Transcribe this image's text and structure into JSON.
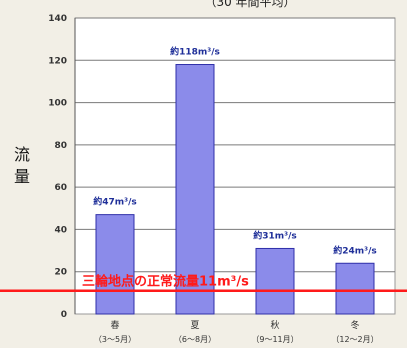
{
  "header_text": "（30 年間平均）",
  "chart_data": {
    "type": "bar",
    "ylabel": "流量",
    "ylim": [
      0,
      140
    ],
    "ytick_values": [
      0,
      20,
      40,
      60,
      80,
      100,
      120,
      140
    ],
    "ytick_labels": [
      "0",
      "20",
      "40",
      "60",
      "80",
      "100",
      "120",
      "140"
    ],
    "categories": [
      "春",
      "夏",
      "秋",
      "冬"
    ],
    "category_ranges": [
      "（3～5月）",
      "（6～8月）",
      "（9～11月）",
      "（12～2月）"
    ],
    "values": [
      47,
      118,
      31,
      24
    ],
    "data_labels": [
      "約47m³/s",
      "約118m³/s",
      "約31m³/s",
      "約24m³/s"
    ],
    "reference_line": {
      "value": 11,
      "label": "三輪地点の正常流量11m³/s",
      "color": "#ff1a1a"
    },
    "grid": true,
    "colors": {
      "bar": "#8b8bea",
      "bar_edge": "#2f2fa8",
      "label": "#1f2f99"
    }
  }
}
